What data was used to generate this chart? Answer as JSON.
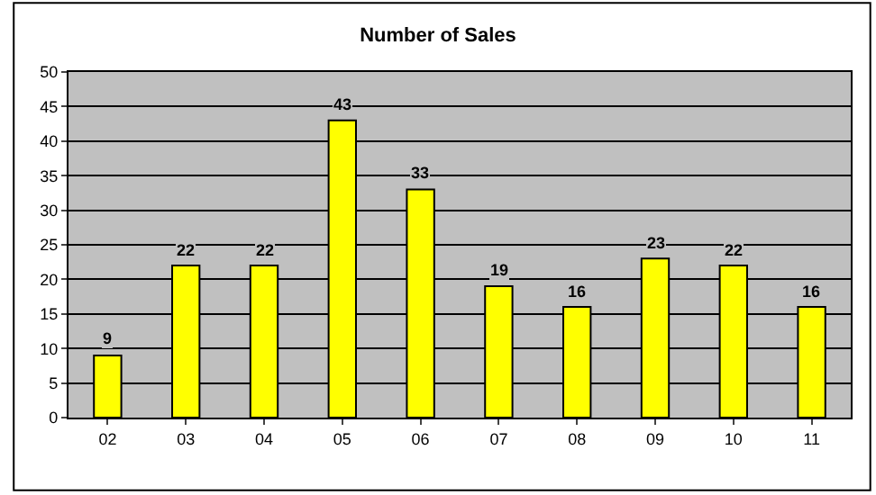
{
  "chart_data": {
    "type": "bar",
    "title": "Number of Sales",
    "categories": [
      "02",
      "03",
      "04",
      "05",
      "06",
      "07",
      "08",
      "09",
      "10",
      "11"
    ],
    "values": [
      9,
      22,
      22,
      43,
      33,
      19,
      16,
      23,
      22,
      16
    ],
    "color": "#ffff00",
    "ylim": [
      0,
      50
    ],
    "yticks": [
      0,
      5,
      10,
      15,
      20,
      25,
      30,
      35,
      40,
      45,
      50
    ],
    "grid": "y",
    "data_labels": true
  }
}
